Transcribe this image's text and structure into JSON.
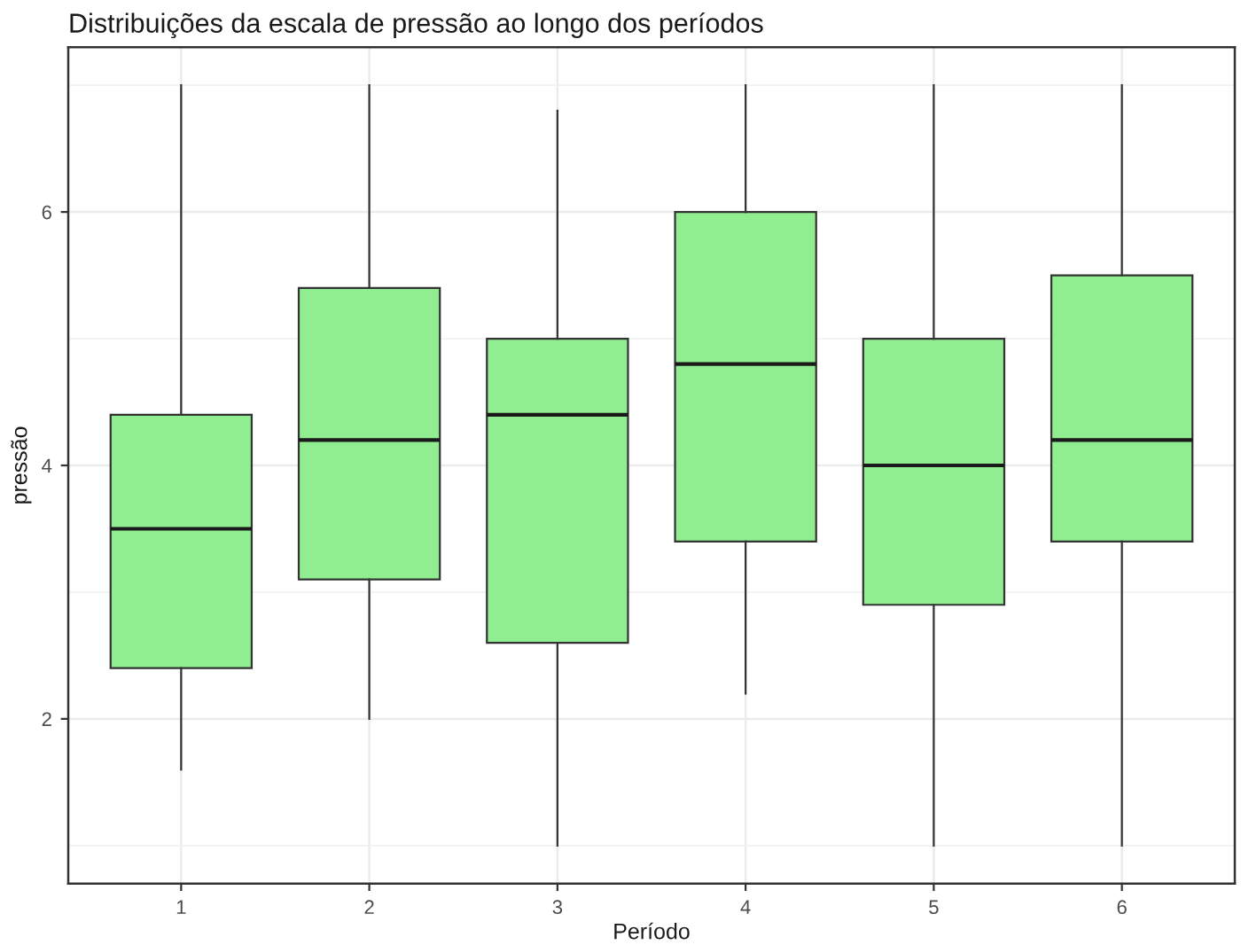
{
  "chart_data": {
    "type": "box",
    "title": "Distribuições da escala de pressão ao longo dos períodos",
    "xlabel": "Período",
    "ylabel": "pressão",
    "categories": [
      "1",
      "2",
      "3",
      "4",
      "5",
      "6"
    ],
    "boxes": [
      {
        "low": 1.6,
        "q1": 2.4,
        "median": 3.5,
        "q3": 4.4,
        "high": 7.0
      },
      {
        "low": 2.0,
        "q1": 3.1,
        "median": 4.2,
        "q3": 5.4,
        "high": 7.0
      },
      {
        "low": 1.0,
        "q1": 2.6,
        "median": 4.4,
        "q3": 5.0,
        "high": 6.8
      },
      {
        "low": 2.2,
        "q1": 3.4,
        "median": 4.8,
        "q3": 6.0,
        "high": 7.0
      },
      {
        "low": 1.0,
        "q1": 2.9,
        "median": 4.0,
        "q3": 5.0,
        "high": 7.0
      },
      {
        "low": 1.0,
        "q1": 3.4,
        "median": 4.2,
        "q3": 5.5,
        "high": 7.0
      }
    ],
    "color": "#90ee90",
    "ylim": [
      0.7,
      7.3
    ],
    "yticks": [
      {
        "value": 1,
        "label": null
      },
      2,
      {
        "value": 3,
        "label": null
      },
      4,
      {
        "value": 5,
        "label": null
      },
      6,
      {
        "value": 7,
        "label": null
      }
    ],
    "grid": true,
    "legend": false
  }
}
